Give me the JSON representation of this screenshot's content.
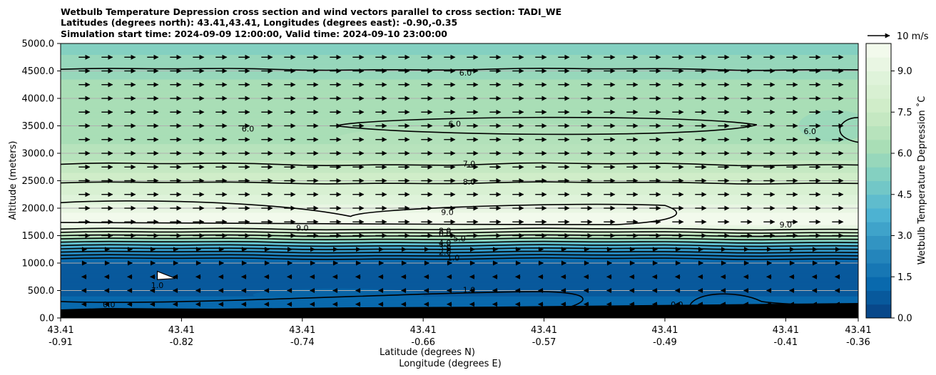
{
  "chart_data": {
    "type": "contourf_cross_section",
    "title_lines": [
      "Wetbulb Temperature Depression cross section and wind vectors parallel to cross section: TADI_WE",
      "Latitudes (degrees north): 43.41,43.41, Longitudes (degrees east): -0.90,-0.35",
      "Simulation start time: 2024-09-09 12:00:00, Valid time: 2024-09-10 23:00:00"
    ],
    "ylabel": "Altitude (meters)",
    "xlabel_lines": [
      "Latitude (degrees N)",
      "Longitude (degrees E)"
    ],
    "ylim": [
      0,
      5000
    ],
    "yticks": [
      0,
      500,
      1000,
      1500,
      2000,
      2500,
      3000,
      3500,
      4000,
      4500,
      5000
    ],
    "ytick_labels": [
      "0.0",
      "500.0",
      "1000.0",
      "1500.0",
      "2000.0",
      "2500.0",
      "3000.0",
      "3500.0",
      "4000.0",
      "4500.0",
      "5000.0"
    ],
    "xlim": [
      0,
      660
    ],
    "xticks": [
      0,
      100,
      200,
      300,
      400,
      500,
      600,
      660
    ],
    "xtick_lat": [
      "43.41",
      "43.41",
      "43.41",
      "43.41",
      "43.41",
      "43.41",
      "43.41",
      "43.41"
    ],
    "xtick_lon": [
      "-0.91",
      "-0.82",
      "-0.74",
      "-0.66",
      "-0.57",
      "-0.49",
      "-0.41",
      "-0.36"
    ],
    "colorbar": {
      "label": "Wetbulb Temperature Depression ˚C",
      "range": [
        0,
        10
      ],
      "levels": 20,
      "ticks": [
        0.0,
        1.5,
        3.0,
        4.5,
        6.0,
        7.5,
        9.0
      ],
      "tick_labels": [
        "0.0",
        "1.5",
        "3.0",
        "4.5",
        "6.0",
        "7.5",
        "9.0"
      ]
    },
    "profile": {
      "altitude_m": [
        0,
        200,
        400,
        700,
        900,
        1000,
        1100,
        1200,
        1300,
        1400,
        1500,
        1600,
        1700,
        1800,
        1900,
        2000,
        2200,
        2400,
        2600,
        2800,
        3000,
        3300,
        3600,
        3900,
        4200,
        4500,
        4700,
        5000
      ],
      "depression_c": [
        1.0,
        1.2,
        1.0,
        0.6,
        0.5,
        0.8,
        1.6,
        2.6,
        3.6,
        5.0,
        6.8,
        8.2,
        9.5,
        9.7,
        9.6,
        9.3,
        8.6,
        8.1,
        7.6,
        7.1,
        6.8,
        6.3,
        6.0,
        6.2,
        6.1,
        5.9,
        5.6,
        5.3
      ]
    },
    "contour_labels": [
      "6.0",
      "6.0",
      "6.0",
      "6.0",
      "7.0",
      "8.0",
      "9.0",
      "9.0",
      "9.0",
      "8.0",
      "6.0",
      "5.0",
      "4.0",
      "3.0",
      "2.0",
      "1.0",
      "1.0",
      "1.0",
      "0.0",
      "0.0"
    ],
    "wind_key": {
      "label": "10 m/s"
    },
    "terrain": "black filled terrain near the surface, about 100-250 m"
  }
}
